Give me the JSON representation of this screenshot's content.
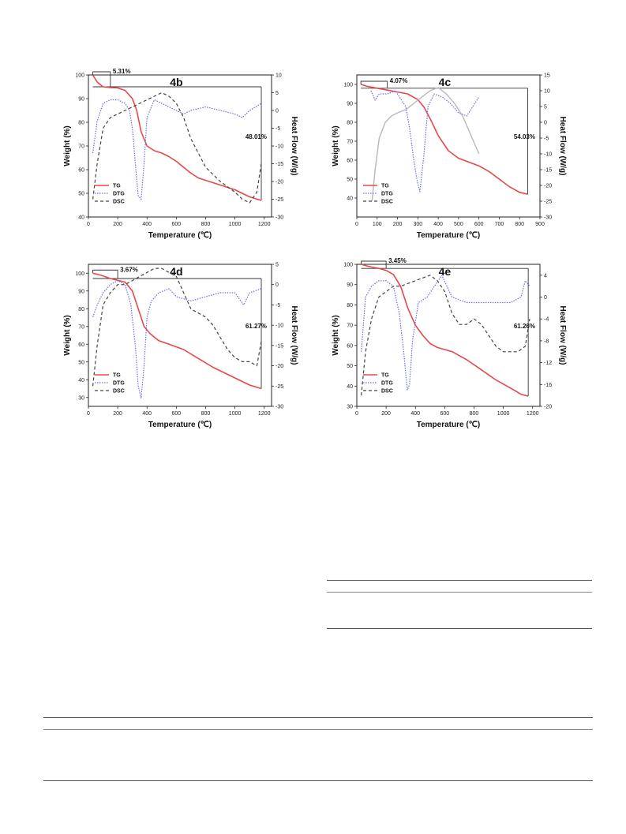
{
  "colors": {
    "tg": "#e8474a",
    "dtg": "#6a6cf0",
    "dsc": "#444444",
    "dsc_light": "#b8b8b8"
  },
  "chart_data": [
    {
      "id": "4b",
      "type": "line",
      "title": "4b",
      "xlabel": "Temperature (℃)",
      "ylabel": "Weight (%)",
      "y2label": "Heat Flow (W/g)",
      "xlim": [
        0,
        1250
      ],
      "ylim": [
        40,
        100
      ],
      "y2lim": [
        -30,
        10
      ],
      "xticks": [
        0,
        200,
        400,
        600,
        800,
        1000,
        1200
      ],
      "yticks": [
        40,
        50,
        60,
        70,
        80,
        90,
        100
      ],
      "y2ticks": [
        -30,
        -25,
        -20,
        -15,
        -10,
        -5,
        0,
        5,
        10
      ],
      "annotations": [
        "5.31%",
        "48.01%"
      ],
      "legend": [
        "TG",
        "DTG",
        "DSC"
      ],
      "series": [
        {
          "name": "TG",
          "axis": "left",
          "style": "solid",
          "x": [
            30,
            60,
            100,
            150,
            200,
            250,
            300,
            330,
            360,
            400,
            450,
            500,
            550,
            600,
            650,
            700,
            750,
            800,
            900,
            1000,
            1100,
            1180
          ],
          "y": [
            100,
            97,
            95,
            94.7,
            94.5,
            93.5,
            90,
            85,
            76,
            70,
            68,
            67,
            65.5,
            63.5,
            61,
            58.5,
            56.5,
            55.5,
            53.5,
            51.5,
            48.5,
            47
          ]
        },
        {
          "name": "DTG",
          "axis": "right",
          "style": "dotted",
          "x": [
            30,
            60,
            100,
            150,
            200,
            250,
            280,
            300,
            320,
            340,
            360,
            380,
            400,
            450,
            500,
            550,
            600,
            650,
            700,
            800,
            900,
            1000,
            1050,
            1100,
            1180
          ],
          "y": [
            -12,
            -3,
            2,
            3,
            3,
            2,
            0,
            -5,
            -15,
            -24,
            -25,
            -15,
            -2,
            3,
            2,
            1,
            0,
            -1,
            0,
            1,
            0,
            -1,
            -2,
            0,
            2
          ]
        },
        {
          "name": "DSC",
          "axis": "right",
          "style": "dashed",
          "x": [
            30,
            60,
            100,
            150,
            200,
            250,
            300,
            350,
            400,
            450,
            500,
            550,
            600,
            650,
            700,
            750,
            800,
            900,
            1000,
            1050,
            1100,
            1150,
            1180
          ],
          "y": [
            -25,
            -15,
            -5,
            -2,
            -1,
            0,
            1,
            2,
            3,
            4,
            5,
            4,
            2,
            -2,
            -8,
            -12,
            -16,
            -20,
            -23,
            -25,
            -26,
            -23,
            -15
          ]
        }
      ]
    },
    {
      "id": "4c",
      "type": "line",
      "title": "4c",
      "xlabel": "Temperature (℃)",
      "ylabel": "Weight (%)",
      "y2label": "Heat Flow (W/g)",
      "xlim": [
        0,
        900
      ],
      "ylim": [
        30,
        105
      ],
      "y2lim": [
        -30,
        15
      ],
      "xticks": [
        0,
        100,
        200,
        300,
        400,
        500,
        600,
        700,
        800,
        900
      ],
      "yticks": [
        40,
        50,
        60,
        70,
        80,
        90,
        100
      ],
      "y2ticks": [
        -30,
        -25,
        -20,
        -15,
        -10,
        -5,
        0,
        5,
        10,
        15
      ],
      "annotations": [
        "4.07%",
        "54.03%"
      ],
      "legend": [
        "TG",
        "DTG",
        "DSC"
      ],
      "series": [
        {
          "name": "TG",
          "axis": "left",
          "style": "solid",
          "x": [
            20,
            50,
            100,
            150,
            200,
            250,
            300,
            330,
            360,
            400,
            450,
            500,
            550,
            600,
            650,
            700,
            750,
            800,
            840
          ],
          "y": [
            100,
            99,
            98,
            97,
            96,
            95,
            92,
            88,
            82,
            73,
            65,
            61,
            59,
            57,
            54,
            50,
            46,
            43,
            42
          ]
        },
        {
          "name": "DTG",
          "axis": "right",
          "style": "dotted",
          "x": [
            70,
            90,
            110,
            150,
            190,
            210,
            240,
            260,
            280,
            295,
            310,
            330,
            350,
            380,
            420,
            460,
            500,
            540,
            560,
            580,
            600
          ],
          "y": [
            10,
            7,
            9,
            9,
            10,
            8,
            5,
            -2,
            -12,
            -18,
            -22,
            -10,
            5,
            9,
            8,
            6,
            3,
            2,
            4,
            6,
            8
          ]
        },
        {
          "name": "DSC",
          "axis": "right",
          "style": "solid-light",
          "x": [
            75,
            90,
            110,
            140,
            170,
            200,
            240,
            280,
            320,
            360,
            400,
            440,
            480,
            520,
            560,
            600
          ],
          "y": [
            -25,
            -15,
            -5,
            0,
            2,
            3,
            4,
            6,
            8,
            10,
            11,
            9,
            6,
            2,
            -4,
            -10
          ]
        }
      ]
    },
    {
      "id": "4d",
      "type": "line",
      "title": "4d",
      "xlabel": "Temperature (℃)",
      "ylabel": "Weight (%)",
      "y2label": "Heat Flow (W/g)",
      "xlim": [
        0,
        1250
      ],
      "ylim": [
        25,
        105
      ],
      "y2lim": [
        -30,
        5
      ],
      "xticks": [
        0,
        200,
        400,
        600,
        800,
        1000,
        1200
      ],
      "yticks": [
        30,
        40,
        50,
        60,
        70,
        80,
        90,
        100
      ],
      "y2ticks": [
        -30,
        -25,
        -20,
        -15,
        -10,
        -5,
        0,
        5
      ],
      "annotations": [
        "3.67%",
        "61.27%"
      ],
      "legend": [
        "TG",
        "DTG",
        "DSC"
      ],
      "series": [
        {
          "name": "TG",
          "axis": "left",
          "style": "solid",
          "x": [
            30,
            80,
            150,
            200,
            250,
            300,
            340,
            380,
            420,
            480,
            550,
            650,
            750,
            850,
            950,
            1050,
            1100,
            1180
          ],
          "y": [
            100,
            99,
            97,
            96,
            95,
            90,
            80,
            70,
            66,
            62,
            60,
            57,
            52,
            47,
            43,
            39,
            37,
            35
          ]
        },
        {
          "name": "DTG",
          "axis": "right",
          "style": "dotted",
          "x": [
            30,
            60,
            100,
            150,
            200,
            250,
            290,
            320,
            340,
            360,
            380,
            400,
            430,
            480,
            550,
            600,
            700,
            800,
            900,
            1000,
            1060,
            1100,
            1180
          ],
          "y": [
            -8,
            -5,
            -2,
            0,
            1,
            0,
            -5,
            -15,
            -25,
            -28,
            -20,
            -8,
            -4,
            -2,
            -1,
            -3,
            -4,
            -3,
            -2,
            -2,
            -5,
            -2,
            -1
          ]
        },
        {
          "name": "DSC",
          "axis": "right",
          "style": "dashed",
          "x": [
            30,
            60,
            100,
            150,
            200,
            250,
            300,
            350,
            400,
            450,
            500,
            550,
            600,
            650,
            700,
            750,
            800,
            850,
            900,
            950,
            1000,
            1050,
            1100,
            1150,
            1180
          ],
          "y": [
            -25,
            -15,
            -5,
            -2,
            0,
            0,
            1,
            2,
            3,
            4,
            4,
            3,
            2,
            -2,
            -6,
            -7,
            -8,
            -10,
            -13,
            -16,
            -18,
            -19,
            -19,
            -20,
            -14
          ]
        }
      ]
    },
    {
      "id": "4e",
      "type": "line",
      "title": "4e",
      "xlabel": "Temperature (℃)",
      "ylabel": "Weight (%)",
      "y2label": "Heat Flow (W/g)",
      "xlim": [
        0,
        1250
      ],
      "ylim": [
        30,
        100
      ],
      "y2lim": [
        -20,
        6
      ],
      "xticks": [
        0,
        200,
        400,
        600,
        800,
        1000,
        1200
      ],
      "yticks": [
        30,
        40,
        50,
        60,
        70,
        80,
        90,
        100
      ],
      "y2ticks": [
        -20,
        -16,
        -12,
        -8,
        -4,
        0,
        4
      ],
      "annotations": [
        "3.45%",
        "61.26%"
      ],
      "legend": [
        "TG",
        "DTG",
        "DSC"
      ],
      "series": [
        {
          "name": "TG",
          "axis": "left",
          "style": "solid",
          "x": [
            30,
            80,
            150,
            200,
            250,
            300,
            350,
            400,
            450,
            500,
            550,
            650,
            750,
            850,
            950,
            1050,
            1120,
            1170
          ],
          "y": [
            100,
            99,
            98,
            97,
            95,
            89,
            78,
            70,
            65,
            61,
            59,
            57,
            53,
            48,
            43,
            39,
            36,
            35
          ]
        },
        {
          "name": "DTG",
          "axis": "right",
          "style": "dotted",
          "x": [
            30,
            60,
            100,
            150,
            200,
            250,
            290,
            320,
            345,
            360,
            380,
            420,
            480,
            530,
            580,
            650,
            750,
            850,
            950,
            1050,
            1120,
            1150,
            1180
          ],
          "y": [
            -10,
            0,
            2,
            3,
            3,
            2,
            -3,
            -10,
            -17,
            -16,
            -8,
            -1,
            0,
            2,
            4,
            0,
            -1,
            -1,
            -1,
            -1,
            0,
            3,
            2
          ]
        },
        {
          "name": "DSC",
          "axis": "right",
          "style": "dashed",
          "x": [
            30,
            60,
            100,
            150,
            200,
            250,
            300,
            350,
            400,
            450,
            500,
            550,
            600,
            650,
            700,
            750,
            800,
            850,
            900,
            950,
            1000,
            1050,
            1100,
            1150,
            1180
          ],
          "y": [
            -18,
            -10,
            -4,
            0,
            1,
            2,
            2,
            2.5,
            3,
            3.5,
            4,
            3,
            1,
            -3,
            -5,
            -5,
            -4,
            -5,
            -7,
            -9,
            -10,
            -10,
            -10,
            -9,
            -4
          ]
        }
      ]
    }
  ]
}
